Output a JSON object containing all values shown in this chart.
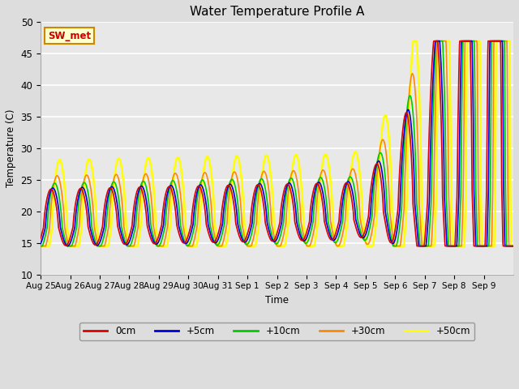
{
  "title": "Water Temperature Profile A",
  "xlabel": "Time",
  "ylabel": "Temperature (C)",
  "ylim": [
    10,
    50
  ],
  "x_tick_labels": [
    "Aug 25",
    "Aug 26",
    "Aug 27",
    "Aug 28",
    "Aug 29",
    "Aug 30",
    "Aug 31",
    "Sep 1",
    "Sep 2",
    "Sep 3",
    "Sep 4",
    "Sep 5",
    "Sep 6",
    "Sep 7",
    "Sep 8",
    "Sep 9"
  ],
  "annotation_text": "SW_met",
  "annotation_bg": "#ffffcc",
  "annotation_border": "#cc8800",
  "annotation_text_color": "#cc0000",
  "fig_bg_color": "#dddddd",
  "plot_bg_color": "#e8e8e8",
  "line_colors": {
    "0cm": "#dd0000",
    "+5cm": "#0000dd",
    "+10cm": "#00cc00",
    "+30cm": "#ff8800",
    "+50cm": "#ffff00"
  },
  "line_widths": {
    "0cm": 1.2,
    "+5cm": 1.2,
    "+10cm": 1.2,
    "+30cm": 1.2,
    "+50cm": 1.8
  },
  "legend_labels": [
    "0cm",
    "+5cm",
    "+10cm",
    "+30cm",
    "+50cm"
  ]
}
